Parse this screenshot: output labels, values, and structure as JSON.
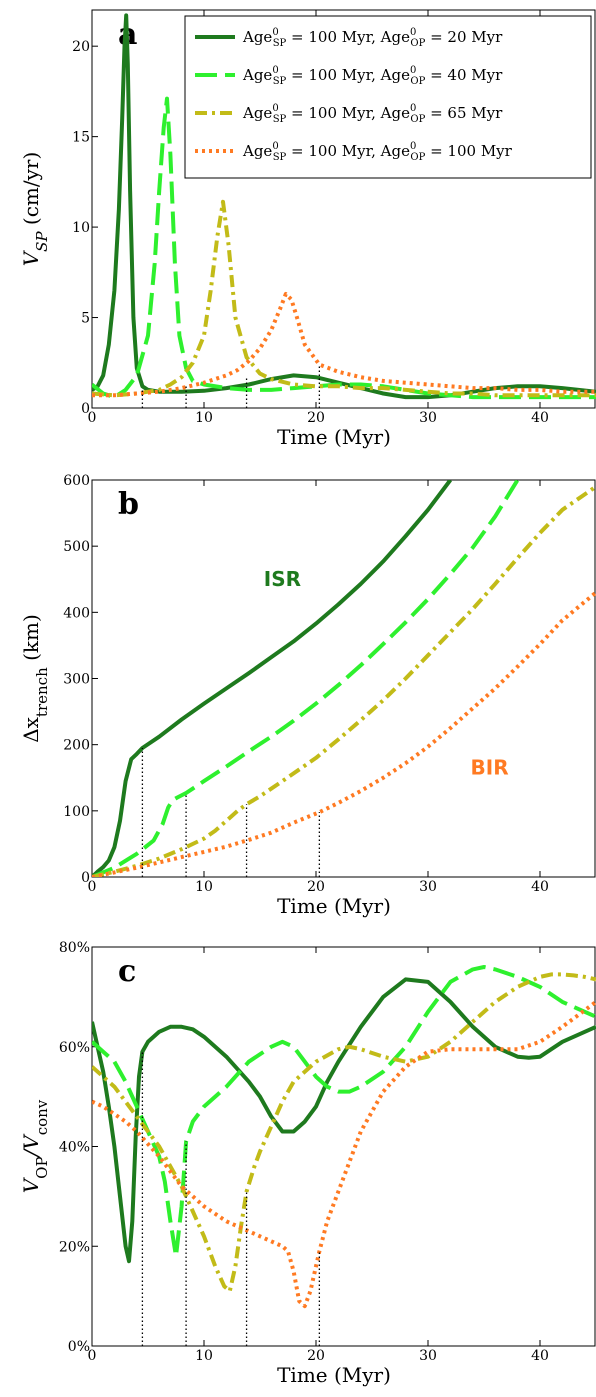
{
  "colors": {
    "s1": "#1e7a1e",
    "s2": "#2ef02e",
    "s3": "#c2bb18",
    "s4": "#ff7a22",
    "marker": "#000000"
  },
  "chart_data": [
    {
      "panel": "a",
      "type": "line",
      "xlabel": "Time (Myr)",
      "ylabel": "V_SP (cm/yr)",
      "xlim": [
        0,
        45
      ],
      "ylim": [
        0,
        22
      ],
      "xticks": [
        0,
        10,
        20,
        30,
        40
      ],
      "yticks": [
        0,
        5,
        10,
        15,
        20
      ],
      "ytick_labels": [
        "0",
        "5",
        "10",
        "15",
        "20"
      ],
      "legend_position": "top-right",
      "markers_x": [
        4.5,
        8.4,
        13.8,
        20.3
      ],
      "markers_top": [
        1.0,
        1.2,
        1.7,
        2.3
      ],
      "series": [
        {
          "name": "Age⁰_SP = 100 Myr, Age⁰_OP = 20 Myr",
          "style": "solid",
          "x": [
            0,
            0.5,
            1,
            1.5,
            2,
            2.4,
            2.7,
            2.9,
            3.05,
            3.2,
            3.4,
            3.7,
            4,
            4.5,
            5,
            6,
            8,
            10,
            12,
            14,
            16,
            18,
            20,
            22,
            24,
            26,
            28,
            30,
            32,
            34,
            36,
            38,
            40,
            42,
            45
          ],
          "values": [
            1.0,
            1.2,
            1.8,
            3.5,
            6.5,
            11,
            16,
            20,
            21.7,
            19,
            12,
            5,
            2.2,
            1.2,
            1.0,
            0.9,
            0.9,
            0.95,
            1.1,
            1.3,
            1.6,
            1.8,
            1.7,
            1.4,
            1.1,
            0.8,
            0.6,
            0.6,
            0.7,
            0.9,
            1.1,
            1.2,
            1.2,
            1.1,
            0.9
          ]
        },
        {
          "name": "Age⁰_SP = 100 Myr, Age⁰_OP = 40 Myr",
          "style": "dashed",
          "x": [
            0,
            1,
            2,
            3,
            4,
            5,
            5.6,
            6.0,
            6.4,
            6.7,
            7.0,
            7.4,
            7.8,
            8.4,
            9,
            10,
            12,
            14,
            16,
            18,
            20,
            22,
            24,
            26,
            28,
            30,
            32,
            34,
            36,
            38,
            40,
            42,
            45
          ],
          "values": [
            1.3,
            0.8,
            0.6,
            1.0,
            1.8,
            4,
            8,
            12,
            15.5,
            17.1,
            14,
            8,
            4,
            2.2,
            1.5,
            1.3,
            1.1,
            1.0,
            1.0,
            1.1,
            1.2,
            1.3,
            1.3,
            1.2,
            1.0,
            0.8,
            0.7,
            0.6,
            0.6,
            0.6,
            0.6,
            0.6,
            0.6
          ]
        },
        {
          "name": "Age⁰_SP = 100 Myr, Age⁰_OP = 65 Myr",
          "style": "dashdot",
          "x": [
            0,
            2,
            4,
            6,
            7,
            8,
            9,
            10,
            10.6,
            11.2,
            11.7,
            12.2,
            12.8,
            13.8,
            15,
            16,
            18,
            20,
            22,
            24,
            26,
            28,
            30,
            32,
            34,
            36,
            38,
            40,
            42,
            45
          ],
          "values": [
            0.8,
            0.7,
            0.8,
            1.0,
            1.3,
            1.7,
            2.5,
            4,
            6.5,
            9.5,
            11.4,
            9,
            5,
            2.8,
            1.9,
            1.6,
            1.3,
            1.2,
            1.2,
            1.1,
            1.1,
            1.0,
            0.9,
            0.8,
            0.8,
            0.7,
            0.7,
            0.7,
            0.7,
            0.7
          ]
        },
        {
          "name": "Age⁰_SP = 100 Myr, Age⁰_OP = 100 Myr",
          "style": "dotted",
          "x": [
            0,
            2,
            4,
            6,
            8,
            10,
            12,
            13,
            14,
            15,
            16,
            16.8,
            17.3,
            17.8,
            18.3,
            19,
            20.3,
            22,
            24,
            26,
            28,
            30,
            32,
            34,
            36,
            38,
            40,
            42,
            45
          ],
          "values": [
            0.7,
            0.7,
            0.8,
            0.9,
            1.1,
            1.4,
            1.8,
            2.1,
            2.6,
            3.3,
            4.3,
            5.5,
            6.3,
            6.0,
            5.0,
            3.5,
            2.4,
            2.0,
            1.7,
            1.5,
            1.4,
            1.3,
            1.2,
            1.1,
            1.1,
            1.0,
            1.0,
            0.9,
            0.9
          ]
        }
      ]
    },
    {
      "panel": "b",
      "type": "line",
      "xlabel": "Time (Myr)",
      "ylabel": "Δx_trench (km)",
      "xlim": [
        0,
        45
      ],
      "ylim": [
        0,
        600
      ],
      "xticks": [
        0,
        10,
        20,
        30,
        40
      ],
      "yticks": [
        0,
        100,
        200,
        300,
        400,
        500,
        600
      ],
      "ytick_labels": [
        "0",
        "100",
        "200",
        "300",
        "400",
        "500",
        "600"
      ],
      "annotations": [
        {
          "text": "ISR",
          "x": 17,
          "y": 440,
          "series": 0
        },
        {
          "text": "BIR",
          "x": 35.5,
          "y": 155,
          "series": 3
        }
      ],
      "markers_x": [
        4.5,
        8.4,
        13.8,
        20.3
      ],
      "markers_top": [
        195,
        127,
        110,
        98
      ],
      "series": [
        {
          "name": "Age⁰_SP = 100 Myr, Age⁰_OP = 20 Myr",
          "style": "solid",
          "x": [
            0,
            0.5,
            1,
            1.5,
            2,
            2.5,
            3,
            3.5,
            4,
            4.5,
            6,
            8,
            10,
            12,
            14,
            16,
            18,
            20,
            22,
            24,
            26,
            28,
            30,
            32
          ],
          "values": [
            0,
            8,
            15,
            25,
            45,
            85,
            145,
            178,
            186,
            195,
            212,
            238,
            262,
            285,
            308,
            332,
            356,
            383,
            412,
            443,
            477,
            515,
            555,
            600
          ]
        },
        {
          "name": "Age⁰_SP = 100 Myr, Age⁰_OP = 40 Myr",
          "style": "dashed",
          "x": [
            0,
            2,
            4,
            5.5,
            6.3,
            6.8,
            7.2,
            7.6,
            8.4,
            10,
            12,
            14,
            16,
            18,
            20,
            22,
            24,
            26,
            28,
            30,
            32,
            34,
            36,
            38
          ],
          "values": [
            0,
            14,
            35,
            55,
            80,
            105,
            116,
            120,
            127,
            145,
            167,
            190,
            212,
            236,
            262,
            290,
            320,
            352,
            385,
            420,
            458,
            498,
            545,
            600
          ]
        },
        {
          "name": "Age⁰_SP = 100 Myr, Age⁰_OP = 65 Myr",
          "style": "dashdot",
          "x": [
            0,
            2,
            4,
            6,
            8,
            10,
            11,
            12,
            13,
            13.8,
            15,
            17,
            20,
            22,
            24,
            26,
            28,
            30,
            32,
            34,
            36,
            38,
            40,
            42,
            45
          ],
          "values": [
            0,
            8,
            17,
            28,
            42,
            58,
            70,
            85,
            100,
            110,
            122,
            145,
            180,
            208,
            237,
            267,
            300,
            335,
            370,
            405,
            443,
            482,
            520,
            555,
            590
          ]
        },
        {
          "name": "Age⁰_SP = 100 Myr, Age⁰_OP = 100 Myr",
          "style": "dotted",
          "x": [
            0,
            2,
            4,
            6,
            8,
            10,
            12,
            14,
            16,
            18,
            20.3,
            22,
            24,
            26,
            28,
            30,
            32,
            34,
            36,
            38,
            40,
            42,
            45
          ],
          "values": [
            0,
            7,
            14,
            22,
            30,
            38,
            46,
            56,
            67,
            82,
            98,
            112,
            130,
            150,
            172,
            197,
            225,
            255,
            285,
            318,
            352,
            388,
            430
          ]
        }
      ]
    },
    {
      "panel": "c",
      "type": "line",
      "xlabel": "Time (Myr)",
      "ylabel": "V_OP/V_conv",
      "xlim": [
        0,
        45
      ],
      "ylim": [
        0,
        80
      ],
      "xticks": [
        0,
        10,
        20,
        30,
        40
      ],
      "yticks": [
        0,
        20,
        40,
        60,
        80
      ],
      "ytick_labels": [
        "0%",
        "20%",
        "40%",
        "60%",
        "80%"
      ],
      "markers_x": [
        4.5,
        8.4,
        13.8,
        20.3
      ],
      "markers_top": [
        59,
        41,
        31,
        19
      ],
      "series": [
        {
          "name": "Age⁰_SP = 100 Myr, Age⁰_OP = 20 Myr",
          "style": "solid",
          "x": [
            0,
            0.5,
            1,
            1.5,
            2,
            2.5,
            3,
            3.3,
            3.6,
            3.9,
            4.2,
            4.5,
            5,
            6,
            7,
            8,
            9,
            10,
            12,
            14,
            15,
            16,
            17,
            18,
            19,
            20,
            21,
            22,
            24,
            26,
            28,
            30,
            32,
            34,
            36,
            38,
            39,
            40,
            42,
            45
          ],
          "values": [
            65,
            60,
            55,
            48,
            40,
            30,
            20,
            17,
            25,
            42,
            54,
            59,
            61,
            63,
            64,
            64,
            63.5,
            62,
            58,
            53,
            50,
            46,
            43,
            43,
            45,
            48,
            53,
            57,
            64,
            70,
            73.5,
            73,
            69,
            64,
            60,
            58,
            57.8,
            58,
            61,
            64
          ]
        },
        {
          "name": "Age⁰_SP = 100 Myr, Age⁰_OP = 40 Myr",
          "style": "dashed",
          "x": [
            0,
            1,
            2,
            3,
            4,
            5,
            6,
            6.5,
            7,
            7.5,
            8,
            8.4,
            9,
            10,
            12,
            14,
            16,
            17,
            18,
            19,
            20,
            21,
            22,
            23,
            24,
            26,
            28,
            30,
            32,
            34,
            35,
            36,
            38,
            40,
            42,
            45
          ],
          "values": [
            61,
            59,
            57,
            53,
            48,
            43,
            38,
            33,
            25,
            18,
            28,
            41,
            45,
            48,
            52,
            57,
            60,
            61,
            60,
            57,
            54,
            52,
            51,
            51,
            52,
            55,
            60,
            67,
            73,
            75.5,
            76,
            75.5,
            74,
            72,
            69,
            66
          ]
        },
        {
          "name": "Age⁰_SP = 100 Myr, Age⁰_OP = 65 Myr",
          "style": "dashdot",
          "x": [
            0,
            2,
            4,
            6,
            8,
            10,
            11,
            11.8,
            12.3,
            12.8,
            13.3,
            13.8,
            14.5,
            15,
            16,
            17,
            18,
            20,
            22,
            23,
            24,
            26,
            28,
            30,
            32,
            34,
            36,
            38,
            40,
            41,
            42,
            43,
            44,
            45
          ],
          "values": [
            56,
            52,
            46,
            40,
            32,
            22,
            16,
            12,
            11,
            16,
            24,
            31,
            36,
            39,
            44,
            49,
            53,
            57,
            59.5,
            60,
            59.5,
            58,
            57,
            58,
            61,
            65,
            69,
            72,
            74,
            74.5,
            74.5,
            74.3,
            74,
            73.5
          ]
        },
        {
          "name": "Age⁰_SP = 100 Myr, Age⁰_OP = 100 Myr",
          "style": "dotted",
          "x": [
            0,
            1,
            2,
            3,
            4,
            5,
            6,
            8,
            10,
            12,
            14,
            16,
            17,
            17.5,
            18,
            18.5,
            19,
            19.5,
            20.3,
            21,
            22,
            24,
            26,
            28,
            30,
            32,
            34,
            36,
            38,
            40,
            42,
            45
          ],
          "values": [
            49,
            48,
            46.5,
            45,
            43,
            40.5,
            38,
            32,
            28,
            25,
            23,
            21,
            20,
            19,
            15,
            9,
            8,
            11,
            19,
            25,
            31,
            43,
            51,
            56,
            59,
            59.5,
            59.5,
            59.5,
            59.5,
            61,
            64,
            69
          ]
        }
      ]
    }
  ],
  "panels_meta": [
    {
      "letter": "a",
      "ylabel_main": "V",
      "ylabel_sub": "SP",
      "ylabel_unit": " (cm/yr)",
      "xlabel": "Time (Myr)"
    },
    {
      "letter": "b",
      "ylabel_main": "Δx",
      "ylabel_sub": "trench",
      "ylabel_unit": " (km)",
      "xlabel": "Time (Myr)"
    },
    {
      "letter": "c",
      "ylabel_main": "V",
      "ylabel_sub": "OP",
      "ylabel_mid": "/V",
      "ylabel_sub2": "conv",
      "xlabel": "Time (Myr)"
    }
  ],
  "legend": [
    {
      "prefix": "Age",
      "sup": "0",
      "sub": "SP",
      "mid": " = 100 Myr, Age",
      "sup2": "0",
      "sub2": "OP",
      "suffix": " = 20 Myr",
      "style": "solid"
    },
    {
      "prefix": "Age",
      "sup": "0",
      "sub": "SP",
      "mid": " = 100 Myr, Age",
      "sup2": "0",
      "sub2": "OP",
      "suffix": " = 40 Myr",
      "style": "dashed"
    },
    {
      "prefix": "Age",
      "sup": "0",
      "sub": "SP",
      "mid": " = 100 Myr, Age",
      "sup2": "0",
      "sub2": "OP",
      "suffix": " = 65 Myr",
      "style": "dashdot"
    },
    {
      "prefix": "Age",
      "sup": "0",
      "sub": "SP",
      "mid": " = 100 Myr, Age",
      "sup2": "0",
      "sub2": "OP",
      "suffix": " = 100 Myr",
      "style": "dotted"
    }
  ]
}
